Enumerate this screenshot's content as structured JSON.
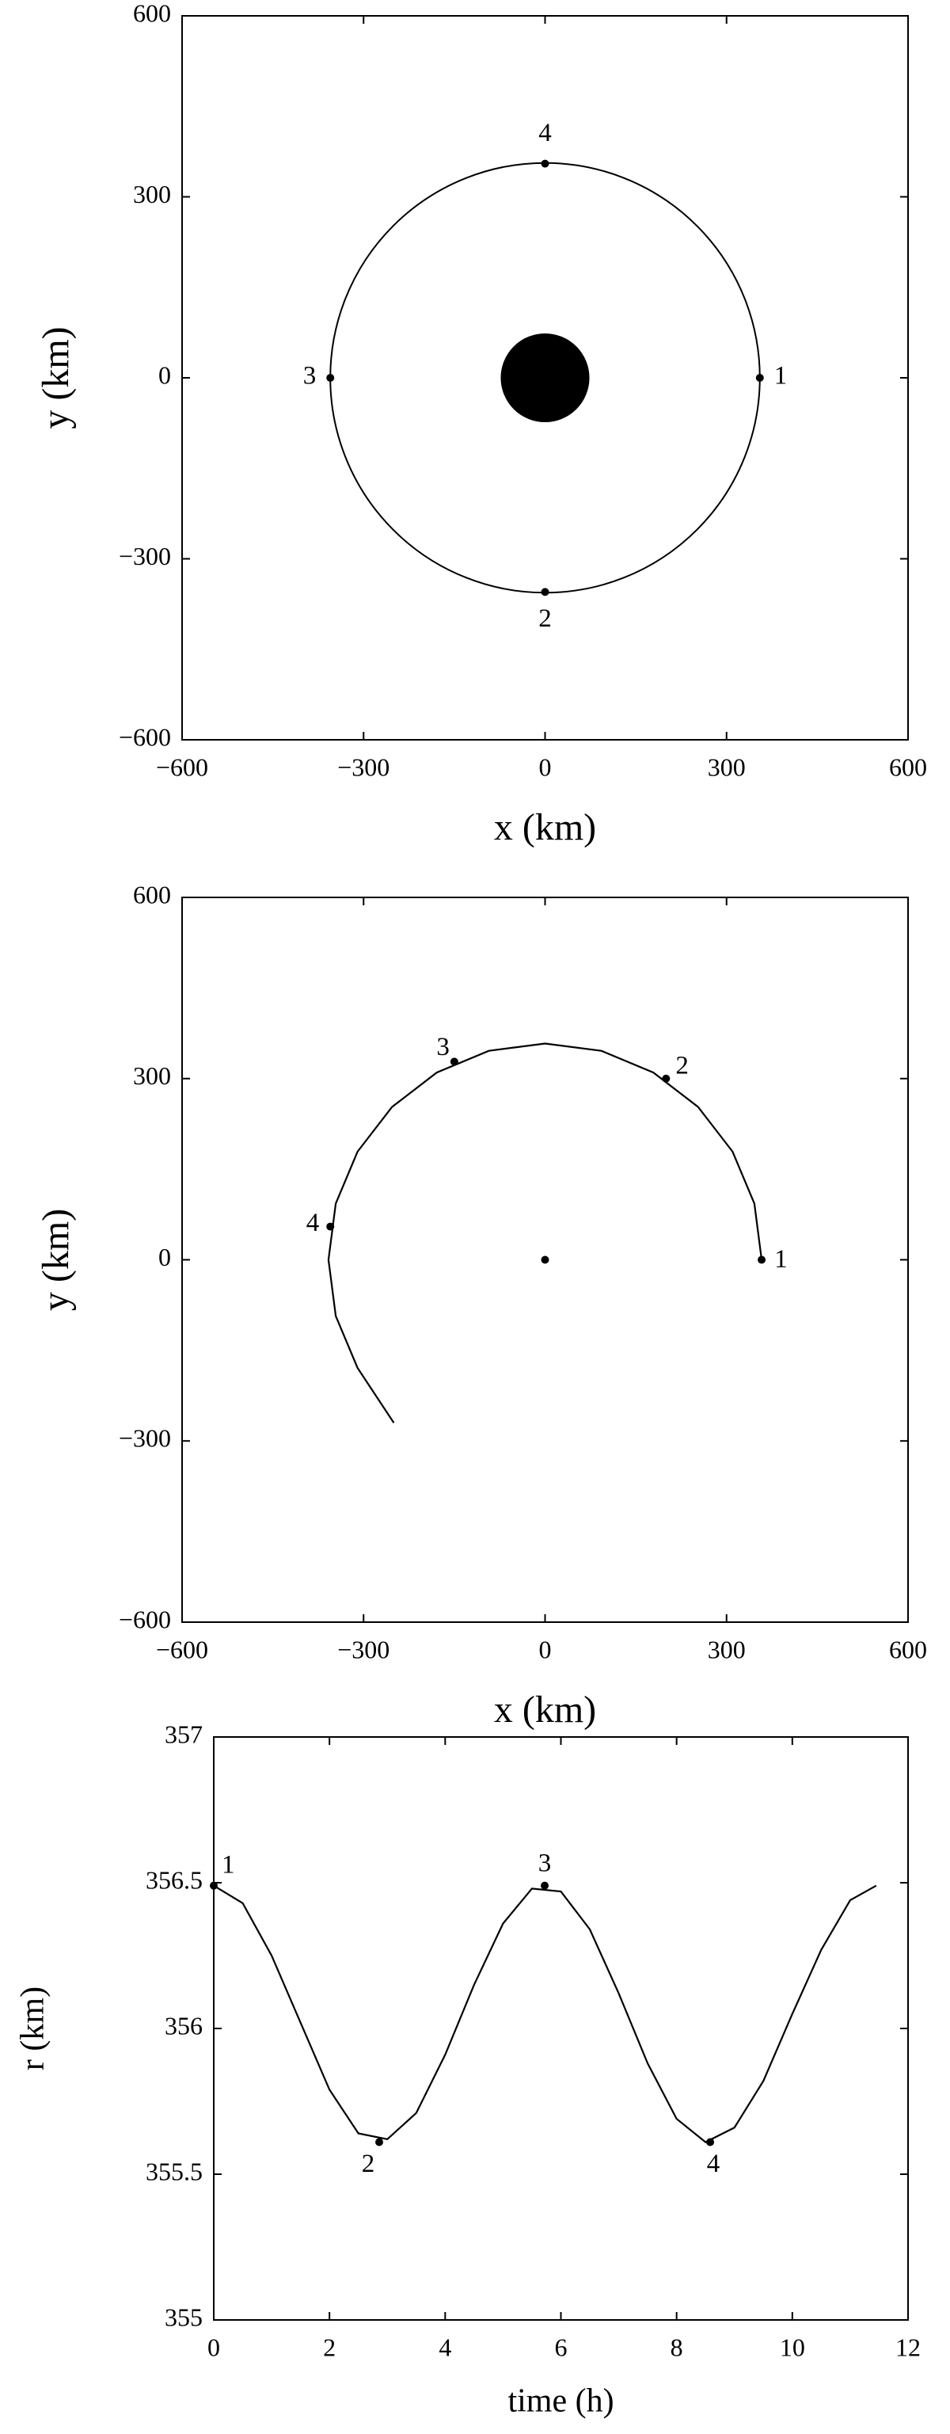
{
  "chart_data": [
    {
      "type": "orbit",
      "xlabel": "x (km)",
      "ylabel": "y (km)",
      "xlim": [
        -600,
        600
      ],
      "ylim": [
        -600,
        600
      ],
      "xticks": [
        {
          "value": -600,
          "label": "−600"
        },
        {
          "value": -300,
          "label": "−300"
        },
        0,
        300,
        600
      ],
      "yticks": [
        {
          "value": -600,
          "label": "−600"
        },
        {
          "value": -300,
          "label": "−300"
        },
        0,
        300,
        600
      ],
      "circles": [
        {
          "cx": 0,
          "cy": 0,
          "r": 355,
          "fill": "none",
          "color": "#000000"
        },
        {
          "cx": 0,
          "cy": 0,
          "r": 72,
          "fill": "#000000",
          "color": "#000000"
        }
      ],
      "points": {
        "x": [
          355,
          0,
          -355,
          0
        ],
        "y": [
          0,
          -355,
          0,
          355
        ],
        "labels": [
          "1",
          "2",
          "3",
          "4"
        ]
      }
    },
    {
      "type": "line",
      "xlabel": "x (km)",
      "ylabel": "y (km)",
      "xlim": [
        -600,
        600
      ],
      "ylim": [
        -600,
        600
      ],
      "xticks": [
        {
          "value": -600,
          "label": "−600"
        },
        {
          "value": -300,
          "label": "−300"
        },
        0,
        300,
        600
      ],
      "yticks": [
        {
          "value": -600,
          "label": "−600"
        },
        {
          "value": -300,
          "label": "−300"
        },
        0,
        300,
        600
      ],
      "series": [
        {
          "color": "#000000",
          "x": [
            358,
            346,
            310,
            253,
            179,
            93,
            0,
            -93,
            -179,
            -253,
            -310,
            -346,
            -358,
            -346,
            -310,
            -250
          ],
          "y": [
            0,
            93,
            179,
            253,
            310,
            346,
            358,
            346,
            310,
            253,
            179,
            93,
            0,
            -93,
            -179,
            -270
          ]
        }
      ],
      "points": {
        "x": [
          358,
          200,
          -150,
          -355
        ],
        "y": [
          0,
          300,
          328,
          55
        ],
        "labels": [
          "1",
          "2",
          "3",
          "4"
        ]
      },
      "center": {
        "x": 0,
        "y": 0
      }
    },
    {
      "type": "line",
      "xlabel": "time (h)",
      "ylabel": "r (km)",
      "xlim": [
        0,
        12
      ],
      "ylim": [
        355,
        357
      ],
      "xticks": [
        0,
        2,
        4,
        6,
        8,
        10,
        12
      ],
      "yticks": [
        355,
        355.5,
        356,
        356.5,
        357
      ],
      "series": [
        {
          "color": "#000000",
          "x": [
            0,
            0.5,
            1,
            1.5,
            2,
            2.5,
            3,
            3.5,
            4,
            4.5,
            5,
            5.5,
            6,
            6.5,
            7,
            7.5,
            8,
            8.5,
            9,
            9.5,
            10,
            10.5,
            11,
            11.45
          ],
          "y": [
            356.49,
            356.43,
            356.25,
            356.02,
            355.79,
            355.64,
            355.62,
            355.71,
            355.91,
            356.15,
            356.36,
            356.48,
            356.47,
            356.34,
            356.12,
            355.88,
            355.69,
            355.61,
            355.66,
            355.82,
            356.05,
            356.27,
            356.44,
            356.49
          ]
        }
      ],
      "points": {
        "x": [
          0,
          2.86,
          5.72,
          8.58
        ],
        "y": [
          356.49,
          355.61,
          356.49,
          355.61
        ],
        "labels": [
          "1",
          "2",
          "3",
          "4"
        ]
      }
    }
  ]
}
